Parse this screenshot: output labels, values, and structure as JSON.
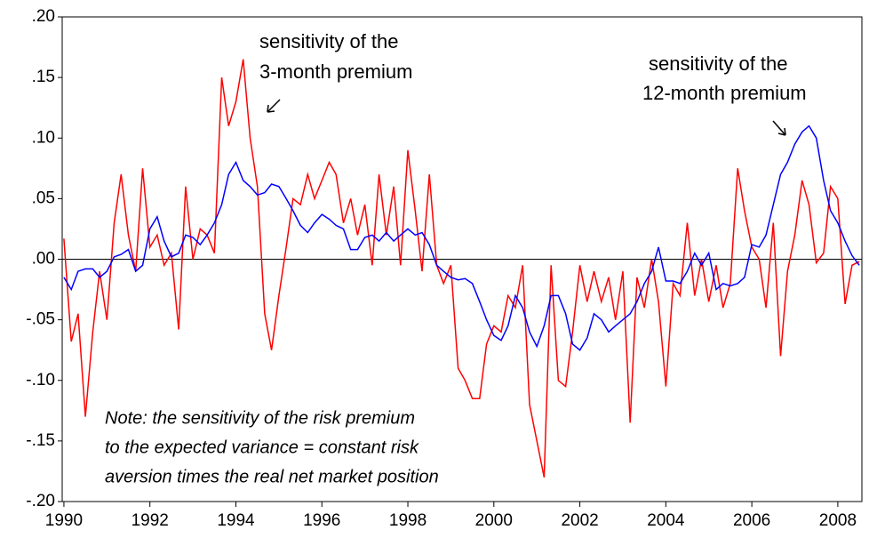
{
  "chart_data": {
    "type": "line",
    "annotations": [
      "sensitivity of the",
      "3-month premium",
      "sensitivity of the",
      "12-month premium",
      "Note: the sensitivity of the risk premium",
      "to the expected variance = constant risk",
      "aversion times the real net market position"
    ],
    "xlim": [
      1989.96,
      2008.56
    ],
    "xticks": [
      1990,
      1992,
      1994,
      1996,
      1998,
      2000,
      2002,
      2004,
      2006,
      2008
    ],
    "ylim": [
      -0.2,
      0.2
    ],
    "yticks": [
      {
        "value": -0.2,
        "label": "-.20"
      },
      {
        "value": -0.15,
        "label": "-.15"
      },
      {
        "value": -0.1,
        "label": "-.10"
      },
      {
        "value": -0.05,
        "label": "-.05"
      },
      {
        "value": 0,
        "label": ".00"
      },
      {
        "value": 0.05,
        "label": ".05"
      },
      {
        "value": 0.1,
        "label": ".10"
      },
      {
        "value": 0.15,
        "label": ".15"
      },
      {
        "value": 0.2,
        "label": ".20"
      }
    ],
    "zero_line": true,
    "grid": false,
    "x": [
      1990.0,
      1990.17,
      1990.33,
      1990.5,
      1990.67,
      1990.83,
      1991.0,
      1991.17,
      1991.33,
      1991.5,
      1991.67,
      1991.83,
      1992.0,
      1992.17,
      1992.33,
      1992.5,
      1992.67,
      1992.83,
      1993.0,
      1993.17,
      1993.33,
      1993.5,
      1993.67,
      1993.83,
      1994.0,
      1994.17,
      1994.33,
      1994.5,
      1994.67,
      1994.83,
      1995.0,
      1995.17,
      1995.33,
      1995.5,
      1995.67,
      1995.83,
      1996.0,
      1996.17,
      1996.33,
      1996.5,
      1996.67,
      1996.83,
      1997.0,
      1997.17,
      1997.33,
      1997.5,
      1997.67,
      1997.83,
      1998.0,
      1998.17,
      1998.33,
      1998.5,
      1998.67,
      1998.83,
      1999.0,
      1999.17,
      1999.33,
      1999.5,
      1999.67,
      1999.83,
      2000.0,
      2000.17,
      2000.33,
      2000.5,
      2000.67,
      2000.83,
      2001.0,
      2001.17,
      2001.33,
      2001.5,
      2001.67,
      2001.83,
      2002.0,
      2002.17,
      2002.33,
      2002.5,
      2002.67,
      2002.83,
      2003.0,
      2003.17,
      2003.33,
      2003.5,
      2003.67,
      2003.83,
      2004.0,
      2004.17,
      2004.33,
      2004.5,
      2004.67,
      2004.83,
      2005.0,
      2005.17,
      2005.33,
      2005.5,
      2005.67,
      2005.83,
      2006.0,
      2006.17,
      2006.33,
      2006.5,
      2006.67,
      2006.83,
      2007.0,
      2007.17,
      2007.33,
      2007.5,
      2007.67,
      2007.83,
      2008.0,
      2008.17,
      2008.33,
      2008.5
    ],
    "series": [
      {
        "color": "#ff0000",
        "values": [
          0.017,
          -0.068,
          -0.045,
          -0.13,
          -0.06,
          -0.01,
          -0.05,
          0.03,
          0.07,
          0.02,
          -0.01,
          0.075,
          0.01,
          0.02,
          -0.005,
          0.005,
          -0.058,
          0.06,
          0.0,
          0.025,
          0.02,
          0.005,
          0.15,
          0.11,
          0.13,
          0.165,
          0.1,
          0.06,
          -0.045,
          -0.075,
          -0.03,
          0.01,
          0.05,
          0.045,
          0.07,
          0.05,
          0.065,
          0.08,
          0.07,
          0.03,
          0.05,
          0.02,
          0.045,
          -0.005,
          0.07,
          0.02,
          0.06,
          -0.005,
          0.09,
          0.04,
          -0.01,
          0.07,
          -0.005,
          -0.02,
          -0.005,
          -0.09,
          -0.1,
          -0.115,
          -0.115,
          -0.07,
          -0.055,
          -0.06,
          -0.03,
          -0.04,
          -0.005,
          -0.12,
          -0.15,
          -0.18,
          -0.005,
          -0.1,
          -0.105,
          -0.06,
          -0.005,
          -0.035,
          -0.01,
          -0.035,
          -0.015,
          -0.05,
          -0.01,
          -0.135,
          -0.015,
          -0.04,
          0.0,
          -0.035,
          -0.105,
          -0.02,
          -0.03,
          0.03,
          -0.03,
          0.0,
          -0.035,
          -0.005,
          -0.04,
          -0.02,
          0.075,
          0.04,
          0.01,
          0.0,
          -0.04,
          0.03,
          -0.08,
          -0.01,
          0.02,
          0.065,
          0.045,
          -0.003,
          0.005,
          0.06,
          0.05,
          -0.037,
          -0.005,
          -0.002
        ]
      },
      {
        "color": "#0000ff",
        "values": [
          -0.015,
          -0.025,
          -0.01,
          -0.008,
          -0.008,
          -0.015,
          -0.01,
          0.002,
          0.004,
          0.008,
          -0.01,
          -0.005,
          0.025,
          0.035,
          0.015,
          0.002,
          0.005,
          0.02,
          0.018,
          0.012,
          0.02,
          0.03,
          0.045,
          0.07,
          0.08,
          0.065,
          0.06,
          0.053,
          0.055,
          0.062,
          0.06,
          0.05,
          0.04,
          0.028,
          0.022,
          0.03,
          0.037,
          0.033,
          0.028,
          0.025,
          0.008,
          0.008,
          0.018,
          0.02,
          0.015,
          0.022,
          0.015,
          0.02,
          0.025,
          0.02,
          0.022,
          0.012,
          -0.005,
          -0.01,
          -0.015,
          -0.017,
          -0.016,
          -0.02,
          -0.035,
          -0.05,
          -0.063,
          -0.067,
          -0.055,
          -0.03,
          -0.04,
          -0.06,
          -0.072,
          -0.055,
          -0.03,
          -0.03,
          -0.045,
          -0.07,
          -0.075,
          -0.065,
          -0.045,
          -0.05,
          -0.06,
          -0.055,
          -0.05,
          -0.045,
          -0.035,
          -0.02,
          -0.01,
          0.01,
          -0.018,
          -0.018,
          -0.02,
          -0.01,
          0.005,
          -0.005,
          0.005,
          -0.025,
          -0.02,
          -0.022,
          -0.02,
          -0.015,
          0.012,
          0.01,
          0.02,
          0.045,
          0.07,
          0.08,
          0.095,
          0.105,
          0.11,
          0.1,
          0.065,
          0.04,
          0.03,
          0.015,
          0.003,
          -0.005
        ]
      }
    ]
  }
}
